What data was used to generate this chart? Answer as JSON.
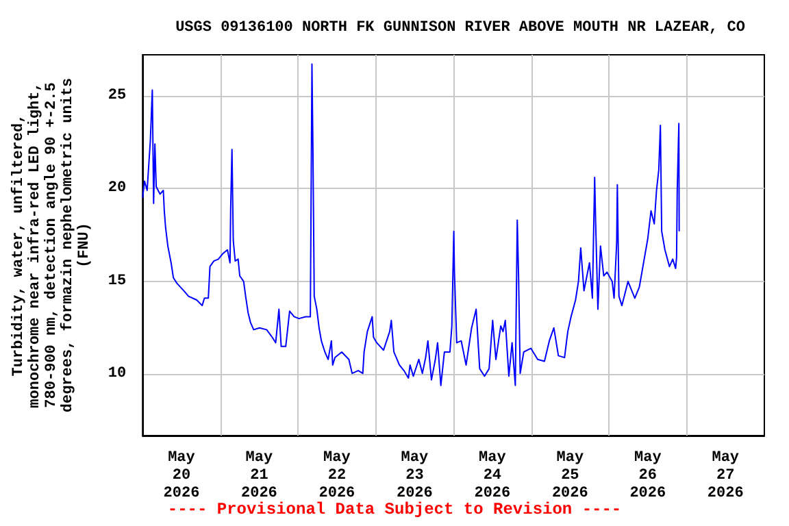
{
  "chart_data": {
    "type": "line",
    "title": "USGS 09136100 NORTH FK GUNNISON RIVER ABOVE MOUTH NR LAZEAR, CO",
    "ylabel": "Turbidity, water, unfiltered,\nmonochrome near infra-red LED light,\n780-900 nm, detection angle 90 +-2.5\ndegrees, formazin nephelometric units\n(FNU)",
    "annotations": [
      "---- Provisional Data Subject to Revision ----"
    ],
    "xlim": [
      "2026-05-20",
      "2026-05-28"
    ],
    "xticks": [
      {
        "value": "2026-05-20T12:00",
        "label": "May\n20\n2026"
      },
      {
        "value": "2026-05-21",
        "label": null
      },
      {
        "value": "2026-05-21T12:00",
        "label": "May\n21\n2026"
      },
      {
        "value": "2026-05-22",
        "label": null
      },
      {
        "value": "2026-05-22T12:00",
        "label": "May\n22\n2026"
      },
      {
        "value": "2026-05-23",
        "label": null
      },
      {
        "value": "2026-05-23T12:00",
        "label": "May\n23\n2026"
      },
      {
        "value": "2026-05-24",
        "label": null
      },
      {
        "value": "2026-05-24T12:00",
        "label": "May\n24\n2026"
      },
      {
        "value": "2026-05-25",
        "label": null
      },
      {
        "value": "2026-05-25T12:00",
        "label": "May\n25\n2026"
      },
      {
        "value": "2026-05-26",
        "label": null
      },
      {
        "value": "2026-05-26T12:00",
        "label": "May\n26\n2026"
      },
      {
        "value": "2026-05-27",
        "label": null
      },
      {
        "value": "2026-05-27T12:00",
        "label": "May\n27\n2026"
      }
    ],
    "ylim": [
      6.7,
      27.2
    ],
    "yticks": [
      10,
      15,
      20,
      25
    ],
    "grid": true,
    "marker": "none",
    "line_style": "solid",
    "x": [
      "2026-05-20T00:00",
      "2026-05-20T00:36",
      "2026-05-20T01:24",
      "2026-05-20T02:24",
      "2026-05-20T03:00",
      "2026-05-20T03:24",
      "2026-05-20T03:48",
      "2026-05-20T04:12",
      "2026-05-20T05:24",
      "2026-05-20T06:24",
      "2026-05-20T06:42",
      "2026-05-20T07:06",
      "2026-05-20T07:48",
      "2026-05-20T08:48",
      "2026-05-20T09:30",
      "2026-05-20T10:36",
      "2026-05-20T12:42",
      "2026-05-20T14:12",
      "2026-05-20T16:42",
      "2026-05-20T18:24",
      "2026-05-20T19:06",
      "2026-05-20T20:18",
      "2026-05-20T20:48",
      "2026-05-20T22:00",
      "2026-05-20T23:24",
      "2026-05-21T00:48",
      "2026-05-21T02:12",
      "2026-05-21T03:00",
      "2026-05-21T03:12",
      "2026-05-21T03:36",
      "2026-05-21T04:00",
      "2026-05-21T04:36",
      "2026-05-21T05:30",
      "2026-05-21T06:00",
      "2026-05-21T07:12",
      "2026-05-21T07:54",
      "2026-05-21T08:36",
      "2026-05-21T09:18",
      "2026-05-21T10:18",
      "2026-05-21T12:06",
      "2026-05-21T14:18",
      "2026-05-21T16:00",
      "2026-05-21T17:06",
      "2026-05-21T18:06",
      "2026-05-21T18:48",
      "2026-05-21T20:12",
      "2026-05-21T21:24",
      "2026-05-21T22:48",
      "2026-05-22T00:18",
      "2026-05-22T02:18",
      "2026-05-22T03:48",
      "2026-05-22T04:18",
      "2026-05-22T04:36",
      "2026-05-22T05:00",
      "2026-05-22T05:48",
      "2026-05-22T06:30",
      "2026-05-22T07:12",
      "2026-05-22T08:18",
      "2026-05-22T09:18",
      "2026-05-22T10:18",
      "2026-05-22T10:42",
      "2026-05-22T11:24",
      "2026-05-22T13:30",
      "2026-05-22T15:42",
      "2026-05-22T16:42",
      "2026-05-22T18:36",
      "2026-05-22T20:00",
      "2026-05-22T20:24",
      "2026-05-22T21:24",
      "2026-05-22T22:54",
      "2026-05-22T23:18",
      "2026-05-23T00:18",
      "2026-05-23T02:24",
      "2026-05-23T04:18",
      "2026-05-23T04:48",
      "2026-05-23T05:36",
      "2026-05-23T07:18",
      "2026-05-23T08:42",
      "2026-05-23T10:06",
      "2026-05-23T10:36",
      "2026-05-23T11:36",
      "2026-05-23T13:18",
      "2026-05-23T14:24",
      "2026-05-23T15:24",
      "2026-05-23T16:06",
      "2026-05-23T17:12",
      "2026-05-23T18:24",
      "2026-05-23T19:06",
      "2026-05-23T20:06",
      "2026-05-23T21:12",
      "2026-05-23T22:54",
      "2026-05-23T23:30",
      "2026-05-24T00:06",
      "2026-05-24T00:18",
      "2026-05-24T01:00",
      "2026-05-24T02:24",
      "2026-05-24T03:54",
      "2026-05-24T05:36",
      "2026-05-24T07:00",
      "2026-05-24T08:06",
      "2026-05-24T09:36",
      "2026-05-24T11:00",
      "2026-05-24T12:06",
      "2026-05-24T13:06",
      "2026-05-24T14:36",
      "2026-05-24T15:18",
      "2026-05-24T16:00",
      "2026-05-24T17:06",
      "2026-05-24T18:06",
      "2026-05-24T19:06",
      "2026-05-24T19:42",
      "2026-05-24T20:06",
      "2026-05-24T20:36",
      "2026-05-24T21:42",
      "2026-05-24T23:54",
      "2026-05-25T02:00",
      "2026-05-25T04:06",
      "2026-05-25T05:36",
      "2026-05-25T07:00",
      "2026-05-25T08:24",
      "2026-05-25T10:18",
      "2026-05-25T11:18",
      "2026-05-25T12:18",
      "2026-05-25T13:42",
      "2026-05-25T14:36",
      "2026-05-25T15:18",
      "2026-05-25T16:18",
      "2026-05-25T18:00",
      "2026-05-25T18:54",
      "2026-05-25T19:36",
      "2026-05-25T19:54",
      "2026-05-25T20:36",
      "2026-05-25T21:24",
      "2026-05-25T22:24",
      "2026-05-25T23:24",
      "2026-05-26T01:00",
      "2026-05-26T01:36",
      "2026-05-26T02:24",
      "2026-05-26T02:36",
      "2026-05-26T03:06",
      "2026-05-26T04:00",
      "2026-05-26T05:54",
      "2026-05-26T08:00",
      "2026-05-26T09:24",
      "2026-05-26T10:54",
      "2026-05-26T12:00",
      "2026-05-26T13:00",
      "2026-05-26T14:00",
      "2026-05-26T14:42",
      "2026-05-26T15:24",
      "2026-05-26T15:54",
      "2026-05-26T16:18",
      "2026-05-26T17:18",
      "2026-05-26T18:42",
      "2026-05-26T19:42",
      "2026-05-26T20:36",
      "2026-05-26T20:54",
      "2026-05-26T21:06",
      "2026-05-26T21:36",
      "2026-05-26T21:42"
    ],
    "series": [
      {
        "color": "#0000ff",
        "values": [
          19.5,
          20.4,
          19.9,
          22.6,
          25.3,
          19.2,
          22.4,
          20.1,
          19.7,
          19.9,
          18.8,
          17.9,
          16.9,
          16.0,
          15.2,
          14.9,
          14.5,
          14.2,
          14.0,
          13.7,
          14.1,
          14.1,
          15.8,
          16.1,
          16.2,
          16.5,
          16.7,
          16.0,
          18.9,
          22.1,
          17.2,
          16.1,
          16.2,
          15.3,
          15.0,
          14.1,
          13.3,
          12.8,
          12.4,
          12.5,
          12.4,
          12.0,
          11.7,
          13.5,
          11.5,
          11.5,
          13.4,
          13.1,
          13.0,
          13.1,
          13.1,
          26.7,
          22.1,
          14.2,
          13.5,
          12.5,
          11.8,
          11.2,
          10.8,
          11.8,
          10.5,
          10.9,
          11.2,
          10.8,
          10.05,
          10.2,
          10.05,
          11.2,
          12.3,
          13.1,
          12.0,
          11.7,
          11.3,
          12.3,
          12.9,
          11.2,
          10.5,
          10.2,
          9.8,
          10.5,
          9.9,
          10.8,
          10.05,
          10.9,
          11.8,
          9.7,
          10.8,
          11.7,
          9.4,
          11.2,
          11.2,
          12.6,
          17.7,
          15.5,
          11.7,
          11.8,
          10.5,
          12.5,
          13.5,
          10.3,
          9.9,
          10.3,
          12.9,
          10.8,
          12.6,
          12.3,
          12.9,
          9.9,
          11.7,
          9.4,
          18.3,
          15.3,
          10.05,
          11.2,
          11.4,
          10.8,
          10.7,
          11.8,
          12.5,
          11.0,
          10.9,
          12.3,
          13.1,
          14.0,
          15.0,
          16.8,
          14.5,
          16.0,
          14.1,
          20.6,
          18.2,
          13.5,
          16.9,
          15.3,
          15.5,
          15.0,
          14.1,
          17.1,
          20.2,
          14.2,
          13.7,
          15.0,
          14.1,
          14.7,
          16.2,
          17.3,
          18.8,
          18.1,
          19.9,
          21.0,
          23.4,
          17.7,
          16.7,
          15.8,
          16.2,
          15.7,
          16.3,
          19.9,
          23.5,
          17.7
        ]
      }
    ]
  }
}
